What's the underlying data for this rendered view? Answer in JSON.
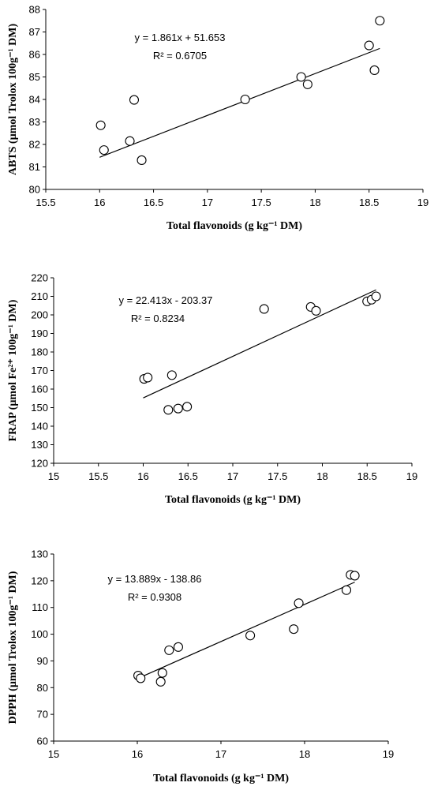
{
  "chart_data": [
    {
      "type": "scatter",
      "xlabel": "Total flavonoids (g kg⁻¹ DM)",
      "ylabel": "ABTS (µmol Trolox 100g⁻¹ DM)",
      "xlim": [
        15.5,
        19
      ],
      "ylim": [
        80,
        88
      ],
      "xticks": [
        15.5,
        16,
        16.5,
        17,
        17.5,
        18,
        18.5,
        19
      ],
      "yticks": [
        80,
        81,
        82,
        83,
        84,
        85,
        86,
        87,
        88
      ],
      "points": [
        {
          "x": 16.01,
          "y": 82.85
        },
        {
          "x": 16.04,
          "y": 81.75
        },
        {
          "x": 16.28,
          "y": 82.15
        },
        {
          "x": 16.32,
          "y": 83.98
        },
        {
          "x": 16.39,
          "y": 81.3
        },
        {
          "x": 17.35,
          "y": 84.0
        },
        {
          "x": 17.87,
          "y": 85.0
        },
        {
          "x": 17.93,
          "y": 84.67
        },
        {
          "x": 18.5,
          "y": 86.4
        },
        {
          "x": 18.55,
          "y": 85.3
        },
        {
          "x": 18.6,
          "y": 87.5
        }
      ],
      "trendline": {
        "slope": 1.861,
        "intercept": 51.653,
        "x_range": [
          16.0,
          18.6
        ]
      },
      "equation": "y = 1.861x + 51.653",
      "r2": "R² = 0.6705",
      "grid": false
    },
    {
      "type": "scatter",
      "xlabel": "Total flavonoids (g kg⁻¹ DM)",
      "ylabel": "FRAP (µmol Fe²⁺ 100g⁻¹ DM)",
      "xlim": [
        15,
        19
      ],
      "ylim": [
        120,
        220
      ],
      "xticks": [
        15,
        15.5,
        16,
        16.5,
        17,
        17.5,
        18,
        18.5,
        19
      ],
      "yticks": [
        120,
        130,
        140,
        150,
        160,
        170,
        180,
        190,
        200,
        210,
        220
      ],
      "points": [
        {
          "x": 16.01,
          "y": 165.5
        },
        {
          "x": 16.05,
          "y": 166.2
        },
        {
          "x": 16.28,
          "y": 148.8
        },
        {
          "x": 16.32,
          "y": 167.5
        },
        {
          "x": 16.39,
          "y": 149.5
        },
        {
          "x": 16.49,
          "y": 150.5
        },
        {
          "x": 17.35,
          "y": 203.2
        },
        {
          "x": 17.87,
          "y": 204.3
        },
        {
          "x": 17.93,
          "y": 202.2
        },
        {
          "x": 18.5,
          "y": 207.3
        },
        {
          "x": 18.55,
          "y": 208.2
        },
        {
          "x": 18.6,
          "y": 210.0
        }
      ],
      "trendline": {
        "slope": 22.413,
        "intercept": -203.37,
        "x_range": [
          16.0,
          18.6
        ]
      },
      "equation": "y = 22.413x - 203.37",
      "r2": "R² = 0.8234",
      "grid": false
    },
    {
      "type": "scatter",
      "xlabel": "Total flavonoids (g kg⁻¹ DM)",
      "ylabel": "DPPH (µmol Trolox 100g⁻¹ DM)",
      "xlim": [
        15,
        19
      ],
      "ylim": [
        60,
        130
      ],
      "xticks": [
        15,
        16,
        17,
        18,
        19
      ],
      "yticks": [
        60,
        70,
        80,
        90,
        100,
        110,
        120,
        130
      ],
      "points": [
        {
          "x": 16.01,
          "y": 84.5
        },
        {
          "x": 16.04,
          "y": 83.5
        },
        {
          "x": 16.28,
          "y": 82.2
        },
        {
          "x": 16.3,
          "y": 85.5
        },
        {
          "x": 16.38,
          "y": 94.0
        },
        {
          "x": 16.49,
          "y": 95.2
        },
        {
          "x": 17.35,
          "y": 99.5
        },
        {
          "x": 17.87,
          "y": 101.9
        },
        {
          "x": 17.93,
          "y": 111.6
        },
        {
          "x": 18.5,
          "y": 116.5
        },
        {
          "x": 18.55,
          "y": 122.2
        },
        {
          "x": 18.6,
          "y": 121.9
        }
      ],
      "trendline": {
        "slope": 13.889,
        "intercept": -138.86,
        "x_range": [
          16.0,
          18.6
        ]
      },
      "equation": "y = 13.889x - 138.86",
      "r2": "R² = 0.9308",
      "grid": false
    }
  ]
}
